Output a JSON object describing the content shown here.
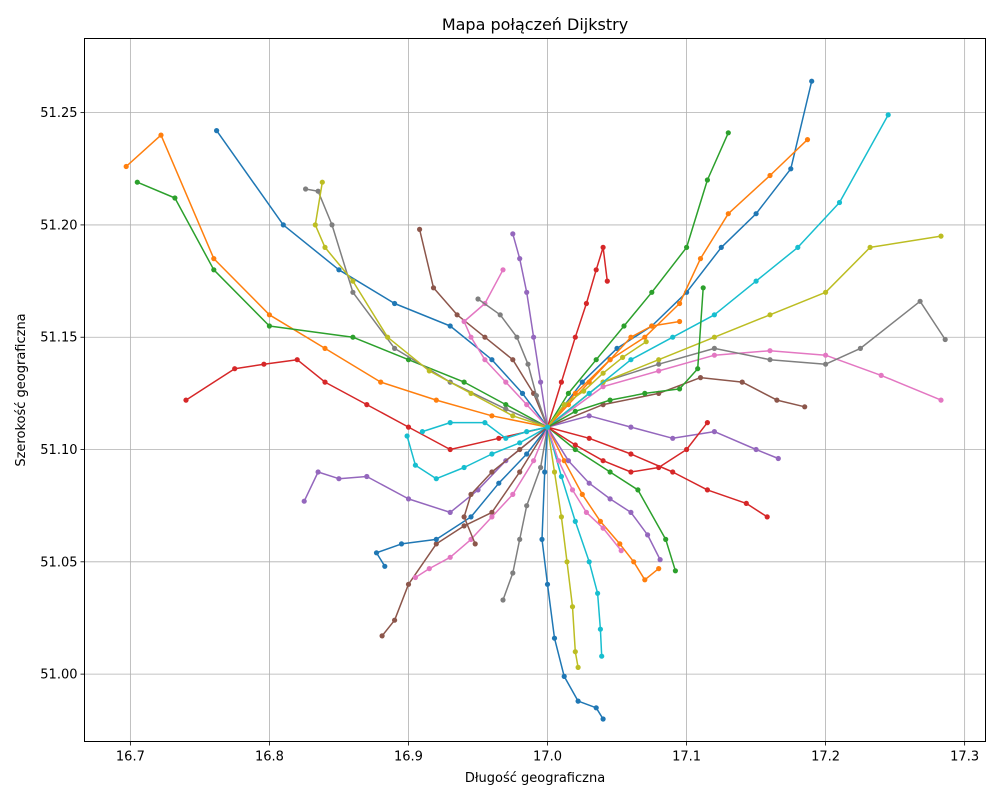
{
  "chart_data": {
    "type": "line",
    "title": "Mapa połączeń Dijkstry",
    "xlabel": "Długość geograficzna",
    "ylabel": "Szerokość geograficzna",
    "xlim": [
      16.667,
      17.315
    ],
    "ylim": [
      50.97,
      51.283
    ],
    "xticks": [
      16.7,
      16.8,
      16.9,
      17.0,
      17.1,
      17.2,
      17.3
    ],
    "xtick_labels": [
      "16.7",
      "16.8",
      "16.9",
      "17.0",
      "17.1",
      "17.2",
      "17.3"
    ],
    "yticks": [
      51.0,
      51.05,
      51.1,
      51.15,
      51.2,
      51.25
    ],
    "ytick_labels": [
      "51.00",
      "51.05",
      "51.10",
      "51.15",
      "51.20",
      "51.25"
    ],
    "grid": true,
    "legend": false,
    "colors": [
      "#1f77b4",
      "#ff7f0e",
      "#2ca02c",
      "#d62728",
      "#9467bd",
      "#8c564b",
      "#e377c2",
      "#7f7f7f",
      "#bcbd22",
      "#17becf"
    ],
    "series": [
      {
        "x": [
          17.0,
          16.982,
          16.96,
          16.93,
          16.89,
          16.85,
          16.81,
          16.762
        ],
        "y": [
          51.11,
          51.125,
          51.14,
          51.155,
          51.165,
          51.18,
          51.2,
          51.242
        ]
      },
      {
        "x": [
          17.0,
          16.96,
          16.92,
          16.88,
          16.84,
          16.8,
          16.76,
          16.722,
          16.697
        ],
        "y": [
          51.11,
          51.115,
          51.122,
          51.13,
          51.145,
          51.16,
          51.185,
          51.24,
          51.226
        ]
      },
      {
        "x": [
          17.0,
          16.97,
          16.94,
          16.9,
          16.86,
          16.8,
          16.76,
          16.732,
          16.705
        ],
        "y": [
          51.11,
          51.12,
          51.13,
          51.14,
          51.15,
          51.155,
          51.18,
          51.212,
          51.219
        ]
      },
      {
        "x": [
          17.0,
          16.965,
          16.93,
          16.9,
          16.87,
          16.84,
          16.82,
          16.796,
          16.775,
          16.74
        ],
        "y": [
          51.11,
          51.105,
          51.1,
          51.11,
          51.12,
          51.13,
          51.14,
          51.138,
          51.136,
          51.122
        ]
      },
      {
        "x": [
          17.0,
          16.97,
          16.95,
          16.93,
          16.9,
          16.87,
          16.85,
          16.835,
          16.825
        ],
        "y": [
          51.11,
          51.095,
          51.082,
          51.072,
          51.078,
          51.088,
          51.087,
          51.09,
          51.077
        ]
      },
      {
        "x": [
          17.0,
          16.98,
          16.96,
          16.94,
          16.92,
          16.9,
          16.89,
          16.881
        ],
        "y": [
          51.11,
          51.09,
          51.072,
          51.066,
          51.058,
          51.04,
          51.024,
          51.017
        ]
      },
      {
        "x": [
          17.0,
          16.99,
          16.975,
          16.96,
          16.945,
          16.93,
          16.915,
          16.905
        ],
        "y": [
          51.11,
          51.095,
          51.08,
          51.07,
          51.06,
          51.052,
          51.047,
          51.043
        ]
      },
      {
        "x": [
          17.0,
          16.995,
          16.985,
          16.98,
          16.975,
          16.968
        ],
        "y": [
          51.11,
          51.092,
          51.075,
          51.06,
          51.045,
          51.033
        ]
      },
      {
        "x": [
          17.0,
          17.005,
          17.01,
          17.014,
          17.018,
          17.02,
          17.022
        ],
        "y": [
          51.11,
          51.09,
          51.07,
          51.05,
          51.03,
          51.01,
          51.003
        ]
      },
      {
        "x": [
          17.0,
          17.01,
          17.02,
          17.03,
          17.036,
          17.038,
          17.039
        ],
        "y": [
          51.11,
          51.088,
          51.068,
          51.05,
          51.036,
          51.02,
          51.008
        ]
      },
      {
        "x": [
          17.0,
          16.998,
          16.996,
          17.0,
          17.005,
          17.012,
          17.022,
          17.035,
          17.04
        ],
        "y": [
          51.11,
          51.09,
          51.06,
          51.04,
          51.016,
          50.999,
          50.988,
          50.985,
          50.98
        ]
      },
      {
        "x": [
          17.0,
          17.012,
          17.025,
          17.038,
          17.052,
          17.062,
          17.07,
          17.08
        ],
        "y": [
          51.11,
          51.095,
          51.08,
          51.068,
          51.058,
          51.05,
          51.042,
          51.047
        ]
      },
      {
        "x": [
          17.0,
          17.02,
          17.045,
          17.065,
          17.085,
          17.092
        ],
        "y": [
          51.11,
          51.1,
          51.09,
          51.082,
          51.06,
          51.046
        ]
      },
      {
        "x": [
          17.0,
          17.03,
          17.06,
          17.09,
          17.115,
          17.143,
          17.158
        ],
        "y": [
          51.11,
          51.105,
          51.098,
          51.09,
          51.082,
          51.076,
          51.07
        ]
      },
      {
        "x": [
          17.0,
          17.03,
          17.06,
          17.09,
          17.12,
          17.15,
          17.166
        ],
        "y": [
          51.11,
          51.115,
          51.11,
          51.105,
          51.108,
          51.1,
          51.096
        ]
      },
      {
        "x": [
          17.0,
          17.04,
          17.08,
          17.11,
          17.14,
          17.165,
          17.185
        ],
        "y": [
          51.11,
          51.12,
          51.125,
          51.132,
          51.13,
          51.122,
          51.119
        ]
      },
      {
        "x": [
          17.0,
          17.04,
          17.08,
          17.12,
          17.16,
          17.2,
          17.24,
          17.283
        ],
        "y": [
          51.11,
          51.128,
          51.135,
          51.142,
          51.144,
          51.142,
          51.133,
          51.122
        ]
      },
      {
        "x": [
          17.0,
          17.04,
          17.08,
          17.12,
          17.16,
          17.2,
          17.225,
          17.268,
          17.286
        ],
        "y": [
          51.11,
          51.13,
          51.138,
          51.145,
          51.14,
          51.138,
          51.145,
          51.166,
          51.149
        ]
      },
      {
        "x": [
          17.0,
          17.04,
          17.08,
          17.12,
          17.16,
          17.2,
          17.232,
          17.283
        ],
        "y": [
          51.11,
          51.13,
          51.14,
          51.15,
          51.16,
          51.17,
          51.19,
          51.195
        ]
      },
      {
        "x": [
          17.0,
          17.03,
          17.06,
          17.09,
          17.12,
          17.15,
          17.18,
          17.21,
          17.245
        ],
        "y": [
          51.11,
          51.125,
          51.14,
          51.15,
          51.16,
          51.175,
          51.19,
          51.21,
          51.249
        ]
      },
      {
        "x": [
          17.0,
          17.025,
          17.05,
          17.075,
          17.1,
          17.125,
          17.15,
          17.175,
          17.19
        ],
        "y": [
          51.11,
          51.13,
          51.145,
          51.155,
          51.17,
          51.19,
          51.205,
          51.225,
          51.264
        ]
      },
      {
        "x": [
          17.0,
          17.02,
          17.045,
          17.07,
          17.095,
          17.11,
          17.13,
          17.16,
          17.187
        ],
        "y": [
          51.11,
          51.125,
          51.14,
          51.15,
          51.165,
          51.185,
          51.205,
          51.222,
          51.238
        ]
      },
      {
        "x": [
          17.0,
          17.015,
          17.035,
          17.055,
          17.075,
          17.1,
          17.115,
          17.13
        ],
        "y": [
          51.11,
          51.125,
          51.14,
          51.155,
          51.17,
          51.19,
          51.22,
          51.241
        ]
      },
      {
        "x": [
          17.0,
          17.01,
          17.02,
          17.028,
          17.035,
          17.04,
          17.043
        ],
        "y": [
          51.11,
          51.13,
          51.15,
          51.165,
          51.18,
          51.19,
          51.175
        ]
      },
      {
        "x": [
          17.0,
          16.995,
          16.99,
          16.985,
          16.98,
          16.975
        ],
        "y": [
          51.11,
          51.13,
          51.15,
          51.17,
          51.185,
          51.196
        ]
      },
      {
        "x": [
          17.0,
          16.99,
          16.975,
          16.955,
          16.935,
          16.918,
          16.908
        ],
        "y": [
          51.11,
          51.125,
          51.14,
          51.15,
          51.16,
          51.172,
          51.198
        ]
      },
      {
        "x": [
          17.0,
          16.985,
          16.97,
          16.955,
          16.945,
          16.94,
          16.955,
          16.968
        ],
        "y": [
          51.11,
          51.12,
          51.13,
          51.14,
          51.15,
          51.157,
          51.165,
          51.18
        ]
      },
      {
        "x": [
          17.0,
          16.97,
          16.93,
          16.89,
          16.86,
          16.845,
          16.835,
          16.826
        ],
        "y": [
          51.11,
          51.118,
          51.13,
          51.145,
          51.17,
          51.2,
          51.215,
          51.216
        ]
      },
      {
        "x": [
          17.0,
          16.975,
          16.945,
          16.915,
          16.885,
          16.86,
          16.84,
          16.833,
          16.838
        ],
        "y": [
          51.11,
          51.115,
          51.125,
          51.135,
          51.15,
          51.175,
          51.19,
          51.2,
          51.219
        ]
      },
      {
        "x": [
          17.0,
          16.98,
          16.96,
          16.94,
          16.92,
          16.905,
          16.899
        ],
        "y": [
          51.11,
          51.103,
          51.098,
          51.092,
          51.087,
          51.093,
          51.106
        ]
      },
      {
        "x": [
          17.0,
          16.985,
          16.965,
          16.945,
          16.92,
          16.895,
          16.877,
          16.883
        ],
        "y": [
          51.11,
          51.098,
          51.085,
          51.07,
          51.06,
          51.058,
          51.054,
          51.048
        ]
      },
      {
        "x": [
          17.0,
          17.015,
          17.03,
          17.045,
          17.06,
          17.075,
          17.095
        ],
        "y": [
          51.11,
          51.12,
          51.13,
          51.14,
          51.15,
          51.155,
          51.157
        ]
      },
      {
        "x": [
          17.0,
          17.02,
          17.045,
          17.07,
          17.095,
          17.108,
          17.112
        ],
        "y": [
          51.11,
          51.117,
          51.122,
          51.125,
          51.127,
          51.136,
          51.172
        ]
      },
      {
        "x": [
          17.0,
          17.02,
          17.04,
          17.06,
          17.08,
          17.1,
          17.115
        ],
        "y": [
          51.11,
          51.102,
          51.095,
          51.09,
          51.092,
          51.1,
          51.112
        ]
      },
      {
        "x": [
          17.0,
          17.015,
          17.03,
          17.045,
          17.06,
          17.072,
          17.081
        ],
        "y": [
          51.11,
          51.095,
          51.085,
          51.078,
          51.072,
          51.062,
          51.051
        ]
      },
      {
        "x": [
          17.0,
          16.98,
          16.96,
          16.945,
          16.94,
          16.948
        ],
        "y": [
          51.11,
          51.1,
          51.09,
          51.08,
          51.07,
          51.058
        ]
      },
      {
        "x": [
          17.0,
          17.008,
          17.018,
          17.028,
          17.04,
          17.053
        ],
        "y": [
          51.11,
          51.095,
          51.082,
          51.072,
          51.065,
          51.055
        ]
      },
      {
        "x": [
          17.0,
          16.992,
          16.986,
          16.978,
          16.966,
          16.95
        ],
        "y": [
          51.11,
          51.124,
          51.138,
          51.15,
          51.16,
          51.167
        ]
      },
      {
        "x": [
          17.0,
          17.012,
          17.026,
          17.04,
          17.054,
          17.071
        ],
        "y": [
          51.11,
          51.12,
          51.126,
          51.134,
          51.141,
          51.148
        ]
      },
      {
        "x": [
          17.0,
          16.985,
          16.97,
          16.955,
          16.93,
          16.91
        ],
        "y": [
          51.11,
          51.108,
          51.105,
          51.112,
          51.112,
          51.108
        ]
      }
    ]
  }
}
